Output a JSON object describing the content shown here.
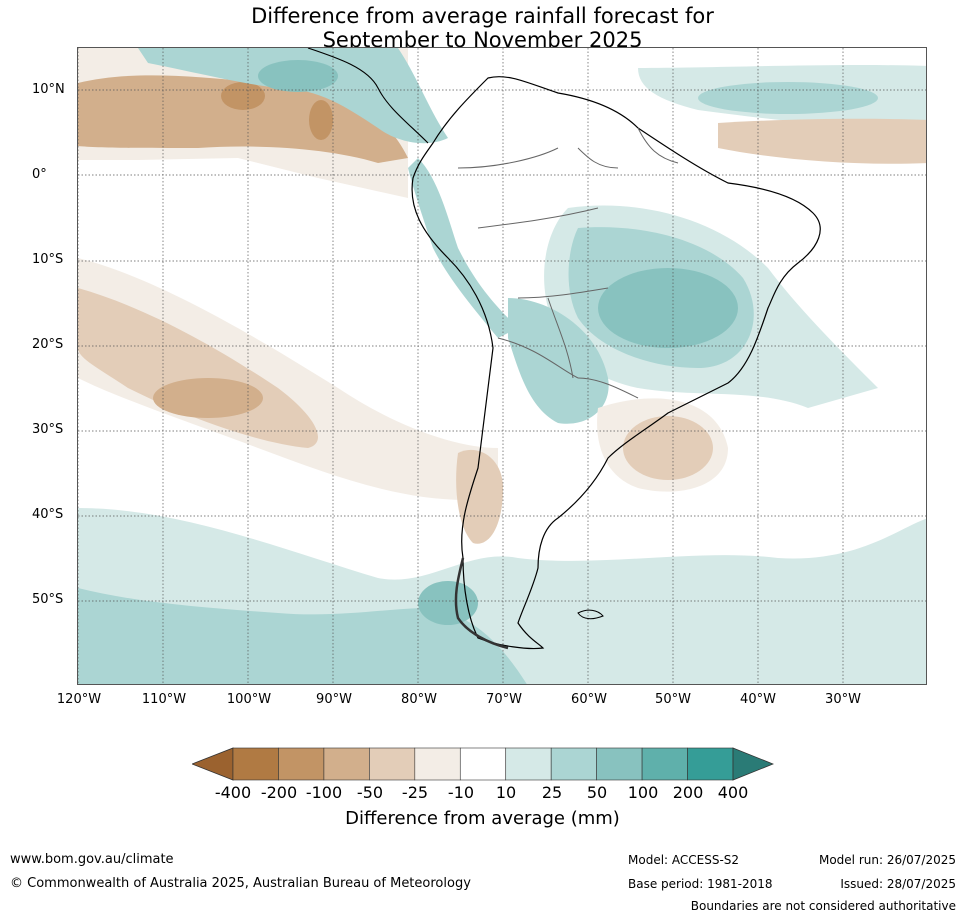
{
  "title": {
    "line1": "Difference from average rainfall forecast for",
    "line2": "September to November 2025"
  },
  "map": {
    "lat_labels": [
      "10°N",
      "0°",
      "10°S",
      "20°S",
      "30°S",
      "40°S",
      "50°S"
    ],
    "lon_labels": [
      "120°W",
      "110°W",
      "100°W",
      "90°W",
      "80°W",
      "70°W",
      "60°W",
      "50°W",
      "40°W",
      "30°W"
    ]
  },
  "legend": {
    "ticks": [
      "-400",
      "-200",
      "-100",
      "-50",
      "-25",
      "-10",
      "10",
      "25",
      "50",
      "100",
      "200",
      "400"
    ],
    "colors": {
      "below_min": "#9b622f",
      "bins": [
        "#b07a43",
        "#c29465",
        "#d2af8c",
        "#e3cdb8",
        "#f3ede6",
        "#ffffff",
        "#d5e9e7",
        "#abd5d3",
        "#88c2bf",
        "#5fb0ab",
        "#359d97"
      ],
      "above_max": "#2a7b76"
    },
    "label": "Difference from average (mm)"
  },
  "footer": {
    "website": "www.bom.gov.au/climate",
    "copyright": "© Commonwealth of Australia 2025, Australian Bureau of Meteorology",
    "model": "Model: ACCESS-S2",
    "base_period": "Base period: 1981-2018",
    "model_run": "Model run: 26/07/2025",
    "issued": "Issued: 28/07/2025",
    "disclaimer": "Boundaries are not considered authoritative"
  }
}
